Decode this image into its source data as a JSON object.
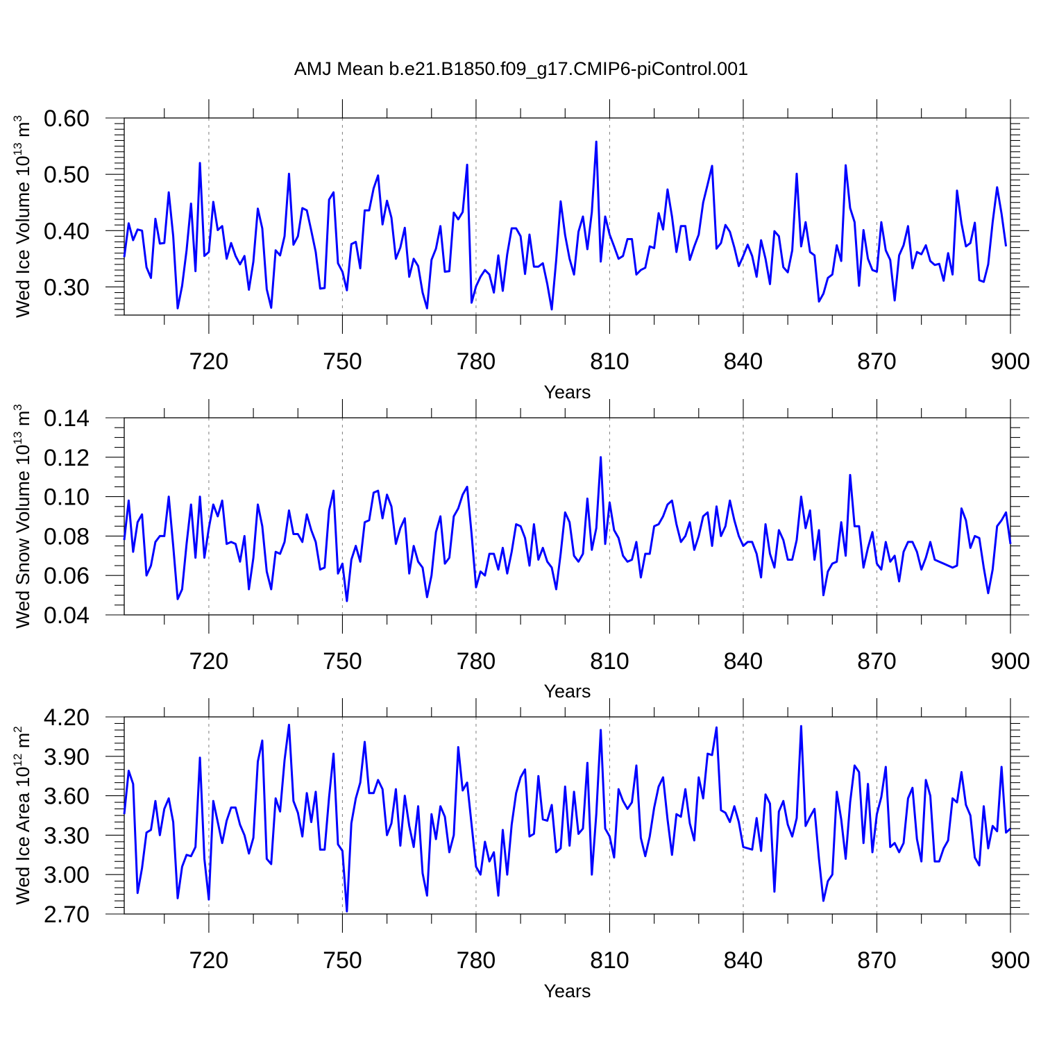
{
  "colors": {
    "series": "#0000ff",
    "axis": "#000000",
    "grid": "#888888"
  },
  "title": "AMJ Mean b.e21.B1850.f09_g17.CMIP6-piControl.001",
  "chart_data": [
    {
      "type": "line",
      "name": "ice-volume",
      "ylabel": "Wed Ice Volume 10",
      "ylabel_exp": "13",
      "ylabel_unit": "m",
      "ylabel_unit_exp": "3",
      "xlabel": "Years",
      "xlim": [
        701,
        900
      ],
      "ylim": [
        0.25,
        0.6
      ],
      "yticks": [
        0.3,
        0.4,
        0.5,
        0.6
      ],
      "ytick_labels": [
        "0.30",
        "0.40",
        "0.50",
        "0.60"
      ],
      "yminor": [
        0.25,
        0.26,
        0.27,
        0.28,
        0.29,
        0.31,
        0.32,
        0.33,
        0.34,
        0.35,
        0.36,
        0.37,
        0.38,
        0.39,
        0.41,
        0.42,
        0.43,
        0.44,
        0.45,
        0.46,
        0.47,
        0.48,
        0.49,
        0.51,
        0.52,
        0.53,
        0.54,
        0.55,
        0.56,
        0.57,
        0.58,
        0.59
      ],
      "xticks": [
        720,
        750,
        780,
        810,
        840,
        870,
        900
      ],
      "xtick_labels": [
        "720",
        "750",
        "780",
        "810",
        "840",
        "870",
        "900"
      ],
      "xminor": [
        710,
        730,
        740,
        760,
        770,
        790,
        800,
        820,
        830,
        850,
        860,
        880,
        890
      ],
      "grid_x": [
        720,
        750,
        780,
        810,
        840,
        870
      ],
      "start_year": 701,
      "values": [
        0.353,
        0.413,
        0.383,
        0.402,
        0.4,
        0.335,
        0.316,
        0.421,
        0.377,
        0.378,
        0.468,
        0.39,
        0.262,
        0.302,
        0.365,
        0.448,
        0.328,
        0.52,
        0.355,
        0.362,
        0.451,
        0.401,
        0.408,
        0.35,
        0.378,
        0.355,
        0.34,
        0.355,
        0.295,
        0.345,
        0.439,
        0.404,
        0.296,
        0.263,
        0.365,
        0.356,
        0.39,
        0.501,
        0.375,
        0.39,
        0.44,
        0.436,
        0.4,
        0.362,
        0.297,
        0.298,
        0.455,
        0.468,
        0.342,
        0.327,
        0.294,
        0.376,
        0.38,
        0.333,
        0.436,
        0.436,
        0.475,
        0.498,
        0.411,
        0.453,
        0.423,
        0.35,
        0.37,
        0.405,
        0.318,
        0.35,
        0.337,
        0.29,
        0.262,
        0.348,
        0.368,
        0.408,
        0.327,
        0.328,
        0.432,
        0.42,
        0.433,
        0.517,
        0.272,
        0.301,
        0.318,
        0.33,
        0.322,
        0.29,
        0.356,
        0.293,
        0.358,
        0.404,
        0.404,
        0.39,
        0.323,
        0.393,
        0.336,
        0.336,
        0.342,
        0.305,
        0.26,
        0.348,
        0.452,
        0.392,
        0.35,
        0.322,
        0.398,
        0.425,
        0.367,
        0.433,
        0.558,
        0.345,
        0.425,
        0.393,
        0.372,
        0.35,
        0.355,
        0.385,
        0.385,
        0.322,
        0.33,
        0.334,
        0.372,
        0.369,
        0.431,
        0.402,
        0.473,
        0.425,
        0.362,
        0.408,
        0.408,
        0.348,
        0.372,
        0.393,
        0.45,
        0.482,
        0.515,
        0.368,
        0.378,
        0.41,
        0.398,
        0.37,
        0.337,
        0.355,
        0.375,
        0.355,
        0.318,
        0.383,
        0.35,
        0.305,
        0.399,
        0.39,
        0.335,
        0.326,
        0.365,
        0.501,
        0.372,
        0.415,
        0.362,
        0.356,
        0.274,
        0.288,
        0.316,
        0.322,
        0.374,
        0.346,
        0.516,
        0.44,
        0.415,
        0.302,
        0.401,
        0.35,
        0.33,
        0.327,
        0.415,
        0.365,
        0.348,
        0.276,
        0.356,
        0.374,
        0.408,
        0.333,
        0.362,
        0.358,
        0.374,
        0.346,
        0.339,
        0.341,
        0.311,
        0.36,
        0.322,
        0.471,
        0.413,
        0.372,
        0.378,
        0.414,
        0.312,
        0.309,
        0.34,
        0.415,
        0.477,
        0.43,
        0.372
      ]
    },
    {
      "type": "line",
      "name": "snow-volume",
      "ylabel": "Wed Snow Volume 10",
      "ylabel_exp": "13",
      "ylabel_unit": "m",
      "ylabel_unit_exp": "3",
      "xlabel": "Years",
      "xlim": [
        701,
        900
      ],
      "ylim": [
        0.04,
        0.14
      ],
      "yticks": [
        0.04,
        0.06,
        0.08,
        0.1,
        0.12,
        0.14
      ],
      "ytick_labels": [
        "0.04",
        "0.06",
        "0.08",
        "0.10",
        "0.12",
        "0.14"
      ],
      "yminor": [
        0.045,
        0.05,
        0.055,
        0.065,
        0.07,
        0.075,
        0.085,
        0.09,
        0.095,
        0.105,
        0.11,
        0.115,
        0.125,
        0.13,
        0.135
      ],
      "xticks": [
        720,
        750,
        780,
        810,
        840,
        870,
        900
      ],
      "xtick_labels": [
        "720",
        "750",
        "780",
        "810",
        "840",
        "870",
        "900"
      ],
      "xminor": [
        710,
        730,
        740,
        760,
        770,
        790,
        800,
        820,
        830,
        850,
        860,
        880,
        890
      ],
      "grid_x": [
        720,
        750,
        780,
        810,
        840,
        870
      ],
      "start_year": 701,
      "values": [
        0.078,
        0.098,
        0.072,
        0.087,
        0.091,
        0.06,
        0.065,
        0.077,
        0.08,
        0.08,
        0.1,
        0.075,
        0.048,
        0.053,
        0.076,
        0.096,
        0.069,
        0.1,
        0.069,
        0.084,
        0.096,
        0.09,
        0.098,
        0.076,
        0.077,
        0.076,
        0.067,
        0.08,
        0.053,
        0.069,
        0.096,
        0.085,
        0.062,
        0.053,
        0.072,
        0.071,
        0.077,
        0.093,
        0.081,
        0.081,
        0.077,
        0.091,
        0.083,
        0.077,
        0.063,
        0.064,
        0.093,
        0.103,
        0.061,
        0.066,
        0.047,
        0.068,
        0.075,
        0.067,
        0.087,
        0.088,
        0.102,
        0.103,
        0.089,
        0.101,
        0.095,
        0.076,
        0.084,
        0.089,
        0.061,
        0.075,
        0.067,
        0.064,
        0.049,
        0.06,
        0.082,
        0.09,
        0.066,
        0.069,
        0.09,
        0.094,
        0.101,
        0.105,
        0.081,
        0.054,
        0.062,
        0.06,
        0.071,
        0.071,
        0.063,
        0.074,
        0.061,
        0.072,
        0.086,
        0.085,
        0.079,
        0.065,
        0.086,
        0.068,
        0.074,
        0.067,
        0.064,
        0.053,
        0.071,
        0.092,
        0.087,
        0.07,
        0.067,
        0.071,
        0.099,
        0.073,
        0.084,
        0.12,
        0.076,
        0.097,
        0.083,
        0.079,
        0.07,
        0.067,
        0.068,
        0.077,
        0.059,
        0.071,
        0.071,
        0.085,
        0.086,
        0.09,
        0.096,
        0.098,
        0.086,
        0.077,
        0.08,
        0.087,
        0.073,
        0.08,
        0.09,
        0.092,
        0.075,
        0.095,
        0.08,
        0.085,
        0.098,
        0.088,
        0.08,
        0.075,
        0.077,
        0.077,
        0.071,
        0.059,
        0.086,
        0.071,
        0.064,
        0.083,
        0.078,
        0.068,
        0.068,
        0.078,
        0.1,
        0.084,
        0.093,
        0.068,
        0.083,
        0.05,
        0.062,
        0.066,
        0.067,
        0.087,
        0.07,
        0.111,
        0.085,
        0.085,
        0.064,
        0.074,
        0.082,
        0.066,
        0.063,
        0.077,
        0.067,
        0.07,
        0.057,
        0.072,
        0.077,
        0.077,
        0.072,
        0.063,
        0.069,
        0.077,
        0.068,
        0.067,
        0.066,
        0.065,
        0.064,
        0.065,
        0.094,
        0.088,
        0.074,
        0.08,
        0.079,
        0.064,
        0.051,
        0.063,
        0.085,
        0.088,
        0.092,
        0.076
      ]
    },
    {
      "type": "line",
      "name": "ice-area",
      "ylabel": "Wed Ice Area 10",
      "ylabel_exp": "12",
      "ylabel_unit": "m",
      "ylabel_unit_exp": "2",
      "xlabel": "Years",
      "xlim": [
        701,
        900
      ],
      "ylim": [
        2.7,
        4.2
      ],
      "yticks": [
        2.7,
        3.0,
        3.3,
        3.6,
        3.9,
        4.2
      ],
      "ytick_labels": [
        "2.70",
        "3.00",
        "3.30",
        "3.60",
        "3.90",
        "4.20"
      ],
      "yminor": [
        2.75,
        2.8,
        2.85,
        2.9,
        2.95,
        3.05,
        3.1,
        3.15,
        3.2,
        3.25,
        3.35,
        3.4,
        3.45,
        3.5,
        3.55,
        3.65,
        3.7,
        3.75,
        3.8,
        3.85,
        3.95,
        4.0,
        4.05,
        4.1,
        4.15
      ],
      "xticks": [
        720,
        750,
        780,
        810,
        840,
        870,
        900
      ],
      "xtick_labels": [
        "720",
        "750",
        "780",
        "810",
        "840",
        "870",
        "900"
      ],
      "xminor": [
        710,
        730,
        740,
        760,
        770,
        790,
        800,
        820,
        830,
        850,
        860,
        880,
        890
      ],
      "grid_x": [
        720,
        750,
        780,
        810,
        840,
        870
      ],
      "start_year": 701,
      "values": [
        3.46,
        3.79,
        3.69,
        2.86,
        3.05,
        3.32,
        3.34,
        3.56,
        3.3,
        3.5,
        3.58,
        3.4,
        2.82,
        3.06,
        3.15,
        3.14,
        3.21,
        3.89,
        3.12,
        2.81,
        3.56,
        3.4,
        3.24,
        3.41,
        3.51,
        3.51,
        3.38,
        3.3,
        3.16,
        3.28,
        3.86,
        4.02,
        3.12,
        3.08,
        3.58,
        3.48,
        3.87,
        4.14,
        3.56,
        3.47,
        3.29,
        3.62,
        3.4,
        3.63,
        3.19,
        3.19,
        3.59,
        3.92,
        3.23,
        3.18,
        2.72,
        3.39,
        3.58,
        3.7,
        4.01,
        3.62,
        3.62,
        3.72,
        3.65,
        3.3,
        3.39,
        3.65,
        3.22,
        3.6,
        3.37,
        3.21,
        3.52,
        3.01,
        2.84,
        3.46,
        3.27,
        3.52,
        3.44,
        3.17,
        3.3,
        3.97,
        3.64,
        3.7,
        3.38,
        3.06,
        3.0,
        3.25,
        3.1,
        3.17,
        2.84,
        3.34,
        3.0,
        3.38,
        3.62,
        3.74,
        3.8,
        3.29,
        3.31,
        3.75,
        3.42,
        3.41,
        3.53,
        3.17,
        3.2,
        3.67,
        3.22,
        3.63,
        3.31,
        3.35,
        3.85,
        3.0,
        3.46,
        4.1,
        3.35,
        3.29,
        3.13,
        3.65,
        3.56,
        3.5,
        3.55,
        3.83,
        3.28,
        3.14,
        3.29,
        3.51,
        3.67,
        3.74,
        3.42,
        3.15,
        3.46,
        3.44,
        3.65,
        3.39,
        3.26,
        3.74,
        3.58,
        3.92,
        3.91,
        4.12,
        3.49,
        3.47,
        3.4,
        3.52,
        3.4,
        3.21,
        3.2,
        3.19,
        3.43,
        3.18,
        3.61,
        3.54,
        2.87,
        3.48,
        3.56,
        3.38,
        3.29,
        3.43,
        4.13,
        3.37,
        3.44,
        3.5,
        3.12,
        2.8,
        2.95,
        3.0,
        3.63,
        3.42,
        3.12,
        3.55,
        3.83,
        3.78,
        3.24,
        3.69,
        3.17,
        3.46,
        3.59,
        3.82,
        3.21,
        3.24,
        3.17,
        3.24,
        3.58,
        3.66,
        3.27,
        3.1,
        3.72,
        3.6,
        3.1,
        3.1,
        3.2,
        3.26,
        3.58,
        3.55,
        3.78,
        3.53,
        3.45,
        3.13,
        3.07,
        3.52,
        3.2,
        3.37,
        3.33,
        3.82,
        3.32,
        3.35
      ]
    }
  ]
}
